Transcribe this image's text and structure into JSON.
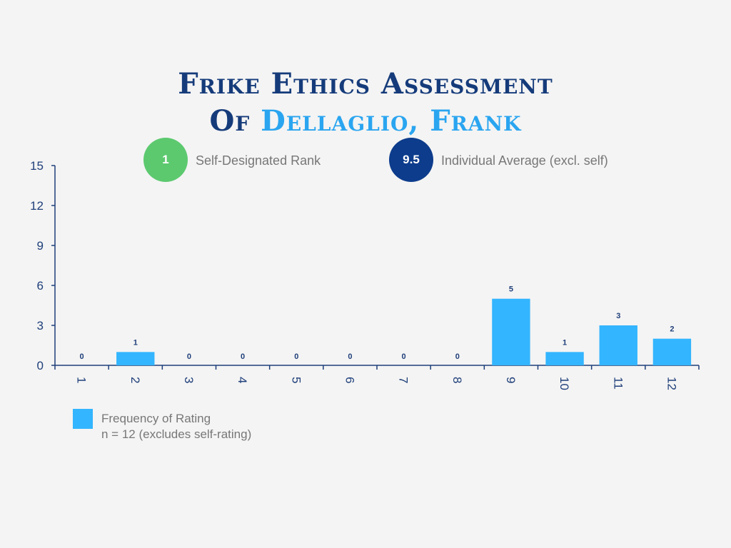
{
  "title": {
    "line1": "Frike Ethics Assessment",
    "line2_prefix": "Of ",
    "line2_name": "Dellaglio, Frank"
  },
  "badges": {
    "self_rank": {
      "value": "1",
      "label": "Self-Designated Rank",
      "color": "#5cc96f"
    },
    "average": {
      "value": "9.5",
      "label": "Individual Average (excl. self)",
      "color": "#0d3c8c"
    }
  },
  "legend": {
    "series_label": "Frequency of Rating",
    "note": "n = 12 (excludes self-rating)"
  },
  "colors": {
    "bar": "#33b5ff",
    "axis": "#1f3f7a",
    "title": "#153b7a",
    "name": "#2aa5f0"
  },
  "chart_data": {
    "type": "bar",
    "categories": [
      "1",
      "2",
      "3",
      "4",
      "5",
      "6",
      "7",
      "8",
      "9",
      "10",
      "11",
      "12"
    ],
    "series": [
      {
        "name": "Frequency of Rating",
        "values": [
          0,
          1,
          0,
          0,
          0,
          0,
          0,
          0,
          5,
          1,
          3,
          2
        ]
      }
    ],
    "ylim": [
      0,
      15
    ],
    "yticks": [
      0,
      3,
      6,
      9,
      12,
      15
    ],
    "grid": false,
    "legend_position": "bottom-left",
    "data_labels": true,
    "xtick_rotation": "vertical"
  }
}
